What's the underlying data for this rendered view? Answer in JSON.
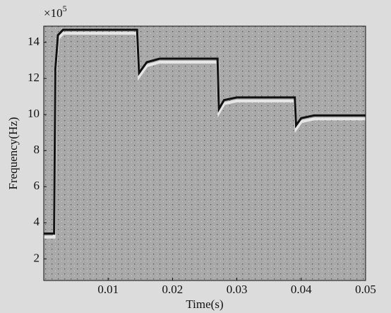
{
  "chart_data": {
    "type": "spectrogram",
    "xlabel": "Time(s)",
    "ylabel": "Frequency(Hz)",
    "y_scale_label": {
      "base": "×10",
      "exponent": "5"
    },
    "xlim": [
      0,
      0.05
    ],
    "ylim": [
      0.8,
      14.9
    ],
    "xticks": [
      0.01,
      0.02,
      0.03,
      0.04,
      0.05
    ],
    "yticks": [
      2,
      4,
      6,
      8,
      10,
      12,
      14
    ],
    "series": [
      {
        "color": "#111111",
        "x": [
          0,
          0.0016,
          0.0018,
          0.0022,
          0.003,
          0.0145,
          0.0148,
          0.016,
          0.018,
          0.027,
          0.0272,
          0.028,
          0.03,
          0.039,
          0.0392,
          0.04,
          0.042,
          0.05
        ],
        "values": [
          3.4,
          3.4,
          12.5,
          14.4,
          14.7,
          14.7,
          12.3,
          12.9,
          13.1,
          13.1,
          10.3,
          10.8,
          10.95,
          10.95,
          9.4,
          9.8,
          9.95,
          9.95
        ]
      }
    ]
  }
}
